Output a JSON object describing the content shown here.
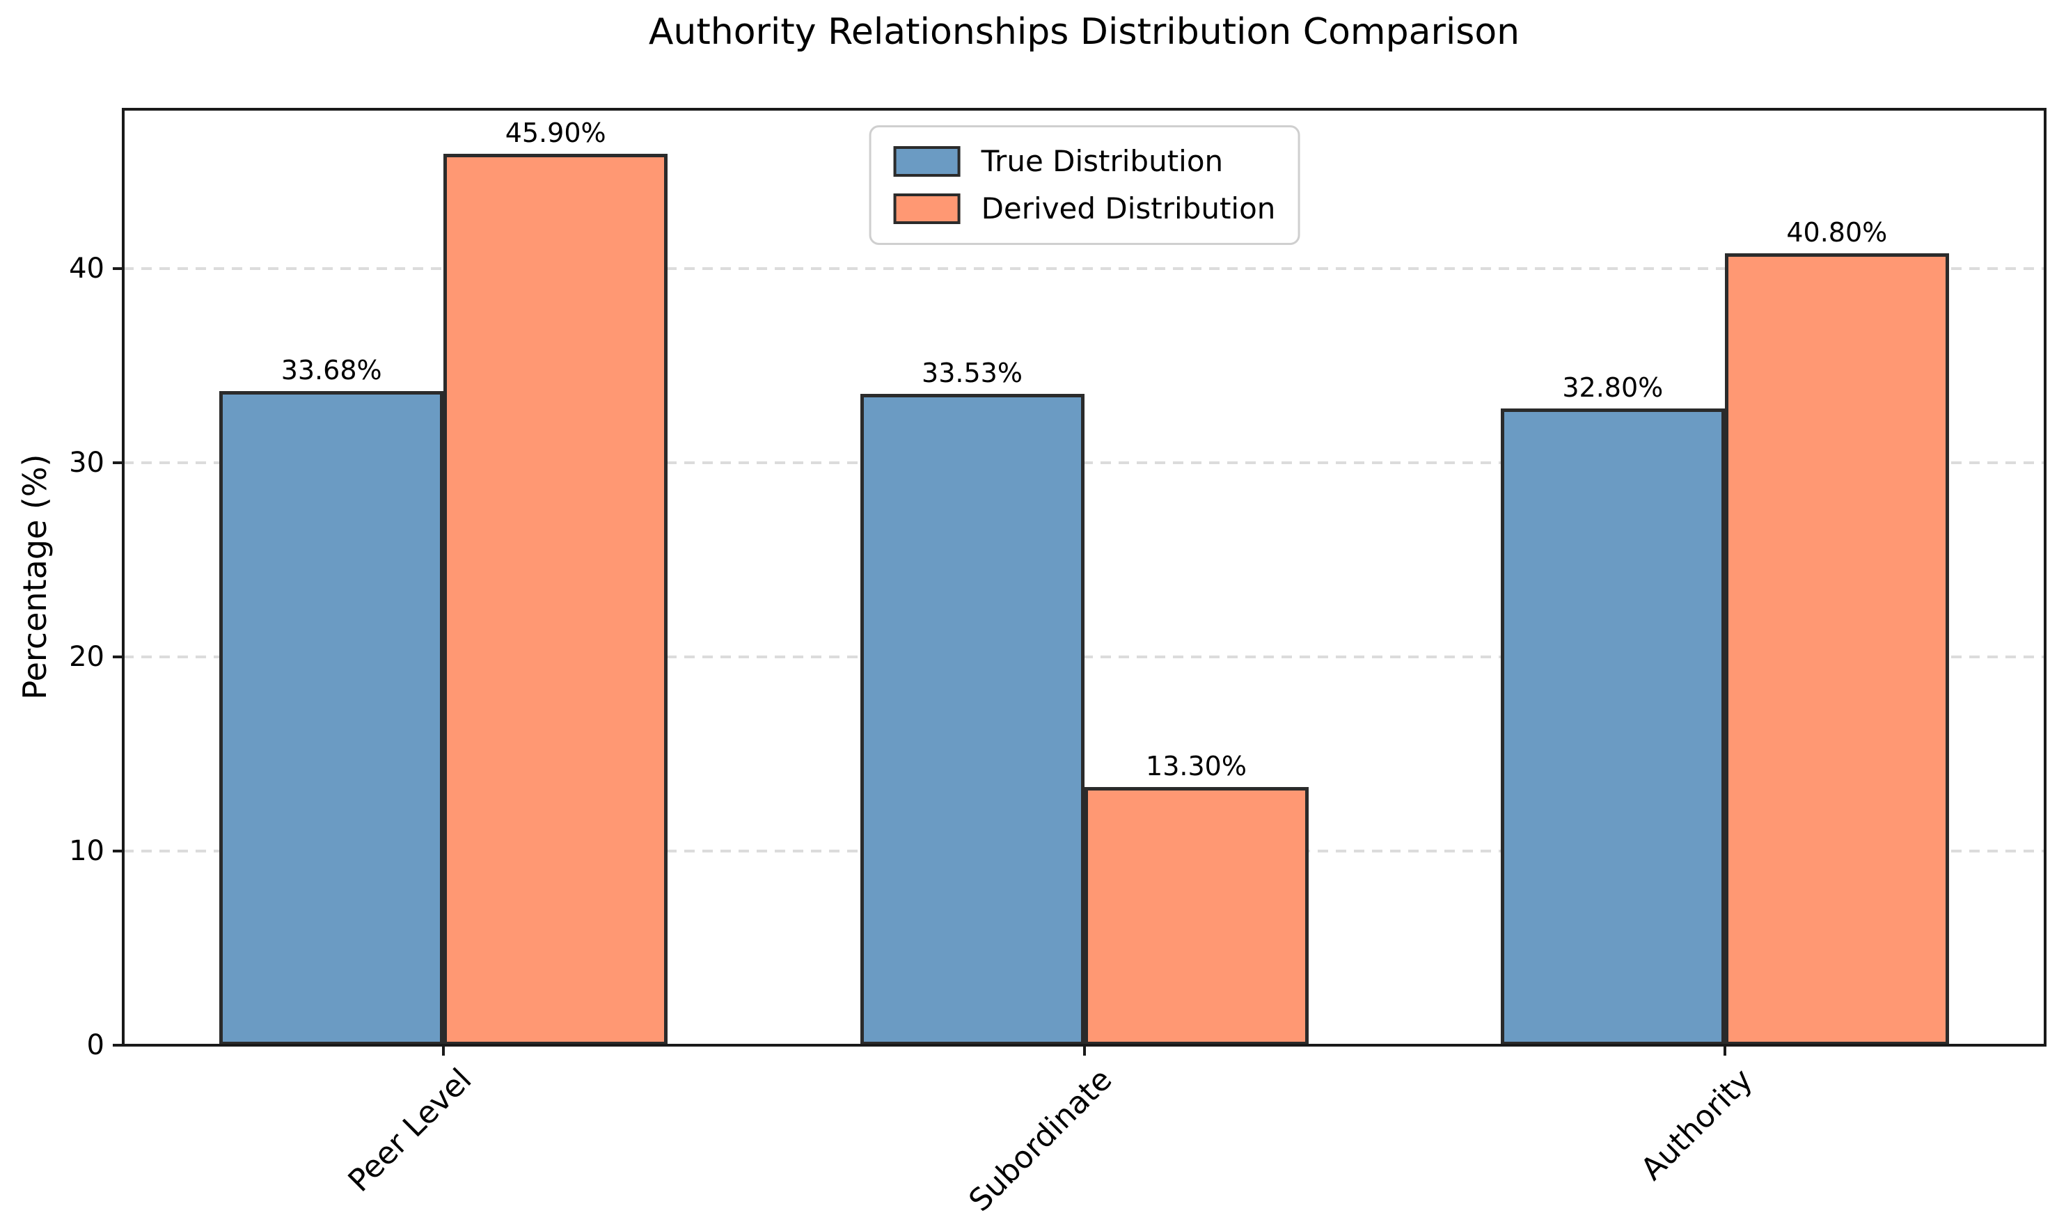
{
  "chart_data": {
    "type": "bar",
    "title": "Authority Relationships Distribution Comparison",
    "xlabel": "",
    "ylabel": "Percentage (%)",
    "categories": [
      "Peer Level",
      "Subordinate",
      "Authority"
    ],
    "series": [
      {
        "name": "True Distribution",
        "color": "#6B9BC3",
        "edge_color": "#2B2B2B",
        "values": [
          33.68,
          33.53,
          32.8
        ],
        "value_labels": [
          "33.68%",
          "33.53%",
          "32.80%"
        ]
      },
      {
        "name": "Derived Distribution",
        "color": "#FF9873",
        "edge_color": "#2B2B2B",
        "values": [
          45.9,
          13.3,
          40.8
        ],
        "value_labels": [
          "45.90%",
          "13.30%",
          "40.80%"
        ]
      }
    ],
    "yticks": [
      0,
      10,
      20,
      30,
      40
    ],
    "ylim": [
      0,
      48.2
    ],
    "bar_group_width": 0.7,
    "xtick_rotation": 45,
    "grid": {
      "axis": "y",
      "style": "dashed",
      "color": "#DCDCDC"
    },
    "legend": {
      "position": "upper center",
      "entries": [
        "True Distribution",
        "Derived Distribution"
      ]
    },
    "axis_color": "#1A1A1A",
    "background": "#FFFFFF"
  }
}
